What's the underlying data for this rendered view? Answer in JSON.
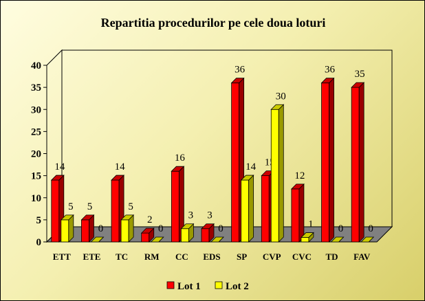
{
  "chart_data": {
    "type": "bar",
    "title": "Repartitia procedurilor pe cele doua loturi",
    "categories": [
      "ETT",
      "ETE",
      "TC",
      "RM",
      "CC",
      "EDS",
      "SP",
      "CVP",
      "CVC",
      "TD",
      "FAV"
    ],
    "series": [
      {
        "name": "Lot 1",
        "color": "#ff0000",
        "values": [
          14,
          5,
          14,
          2,
          16,
          3,
          36,
          15,
          12,
          36,
          35
        ]
      },
      {
        "name": "Lot 2",
        "color": "#ffff00",
        "values": [
          5,
          0,
          5,
          0,
          3,
          0,
          14,
          30,
          1,
          0,
          0
        ]
      }
    ],
    "yticks": [
      "0",
      "5",
      "10",
      "15",
      "20",
      "25",
      "30",
      "35",
      "40"
    ],
    "ylim": [
      0,
      40
    ],
    "legend_position": "bottom",
    "grid": false,
    "three_d": true
  }
}
